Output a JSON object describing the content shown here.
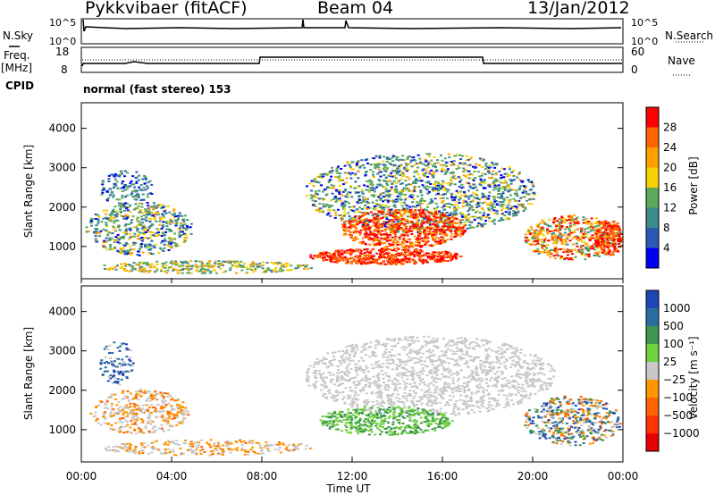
{
  "header": {
    "radar": "Pykkvibaer (fitACF)",
    "beam": "Beam 04",
    "date": "13/Jan/2012"
  },
  "strips": {
    "nsky_label": "N.Sky",
    "nsearch_label": "N.Search",
    "freq_label": "Freq.",
    "freq_unit": "[MHz]",
    "nave_label": "Nave",
    "cpid_label": "CPID",
    "cpid_text": "normal (fast stereo) 153",
    "noise_left_ticks": [
      "10^5",
      "10^0"
    ],
    "noise_right_ticks": [
      "10^5",
      "10^0"
    ],
    "freq_ticks": [
      "18",
      "8"
    ],
    "nave_ticks": [
      "60",
      "0"
    ]
  },
  "chart_data": [
    {
      "type": "heatmap",
      "name": "power",
      "ylabel": "Slant Range [km]",
      "yticks": [
        1000,
        2000,
        3000,
        4000
      ],
      "ylim": [
        180,
        4650
      ],
      "xlim": [
        0,
        24
      ],
      "colorbar": {
        "label": "Power [dB]",
        "ticks": [
          "28",
          "24",
          "20",
          "16",
          "12",
          "8",
          "4"
        ],
        "colors": [
          "#ff0000",
          "#ff6400",
          "#ffa000",
          "#f5d200",
          "#5aaa5a",
          "#3c8c8c",
          "#2a5ab4",
          "#0000f0"
        ]
      }
    },
    {
      "type": "heatmap",
      "name": "velocity",
      "ylabel": "Slant Range [km]",
      "yticks": [
        1000,
        2000,
        3000,
        4000
      ],
      "ylim": [
        180,
        4650
      ],
      "xlim": [
        0,
        24
      ],
      "colorbar": {
        "label": "Velocity [m s⁻¹]",
        "ticks": [
          "1000",
          "500",
          "100",
          "25",
          "−25",
          "−100",
          "−500",
          "−1000"
        ],
        "colors": [
          "#1e46b4",
          "#2a6ea0",
          "#3c9650",
          "#6ed23c",
          "#c8c8c8",
          "#ff9600",
          "#ff6400",
          "#ff3200",
          "#e60000"
        ]
      },
      "xticks": [
        "00:00",
        "04:00",
        "08:00",
        "12:00",
        "16:00",
        "20:00",
        "00:00"
      ],
      "xlabel": "Time UT"
    }
  ]
}
